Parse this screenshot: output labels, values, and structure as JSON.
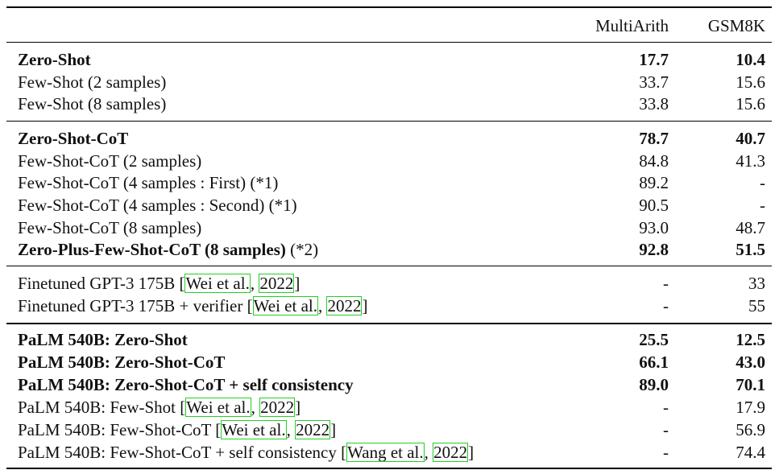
{
  "header": {
    "col1": "MultiArith",
    "col2": "GSM8K"
  },
  "rows": [
    {
      "label": "Zero-Shot",
      "multiarith": "17.7",
      "gsm8k": "10.4"
    },
    {
      "label": "Few-Shot (2 samples)",
      "multiarith": "33.7",
      "gsm8k": "15.6"
    },
    {
      "label": "Few-Shot (8 samples)",
      "multiarith": "33.8",
      "gsm8k": "15.6"
    },
    {
      "label": "Zero-Shot-CoT",
      "multiarith": "78.7",
      "gsm8k": "40.7"
    },
    {
      "label": "Few-Shot-CoT (2 samples)",
      "multiarith": "84.8",
      "gsm8k": "41.3"
    },
    {
      "label": "Few-Shot-CoT (4 samples : First) (*1)",
      "multiarith": "89.2",
      "gsm8k": "-"
    },
    {
      "label": "Few-Shot-CoT (4 samples : Second) (*1)",
      "multiarith": "90.5",
      "gsm8k": "-"
    },
    {
      "label": "Few-Shot-CoT (8 samples)",
      "multiarith": "93.0",
      "gsm8k": "48.7"
    },
    {
      "label": "Zero-Plus-Few-Shot-CoT (8 samples)",
      "suffix": " (*2)",
      "multiarith": "92.8",
      "gsm8k": "51.5"
    },
    {
      "label": "Finetuned GPT-3 175B ",
      "cite_author": "Wei et al.",
      "cite_year": "2022",
      "multiarith": "-",
      "gsm8k": "33"
    },
    {
      "label": "Finetuned GPT-3 175B + verifier ",
      "cite_author": "Wei et al.",
      "cite_year": "2022",
      "multiarith": "-",
      "gsm8k": "55"
    },
    {
      "label": "PaLM 540B: Zero-Shot",
      "multiarith": "25.5",
      "gsm8k": "12.5"
    },
    {
      "label": "PaLM 540B: Zero-Shot-CoT",
      "multiarith": "66.1",
      "gsm8k": "43.0"
    },
    {
      "label": "PaLM 540B: Zero-Shot-CoT + self consistency",
      "multiarith": "89.0",
      "gsm8k": "70.1"
    },
    {
      "label": "PaLM 540B: Few-Shot ",
      "cite_author": "Wei et al.",
      "cite_year": "2022",
      "multiarith": "-",
      "gsm8k": "17.9"
    },
    {
      "label": "PaLM 540B: Few-Shot-CoT ",
      "cite_author": "Wei et al.",
      "cite_year": "2022",
      "multiarith": "-",
      "gsm8k": "56.9"
    },
    {
      "label": "PaLM 540B: Few-Shot-CoT + self consistency ",
      "cite_author": "Wang et al.",
      "cite_year": "2022",
      "multiarith": "-",
      "gsm8k": "74.4"
    }
  ]
}
